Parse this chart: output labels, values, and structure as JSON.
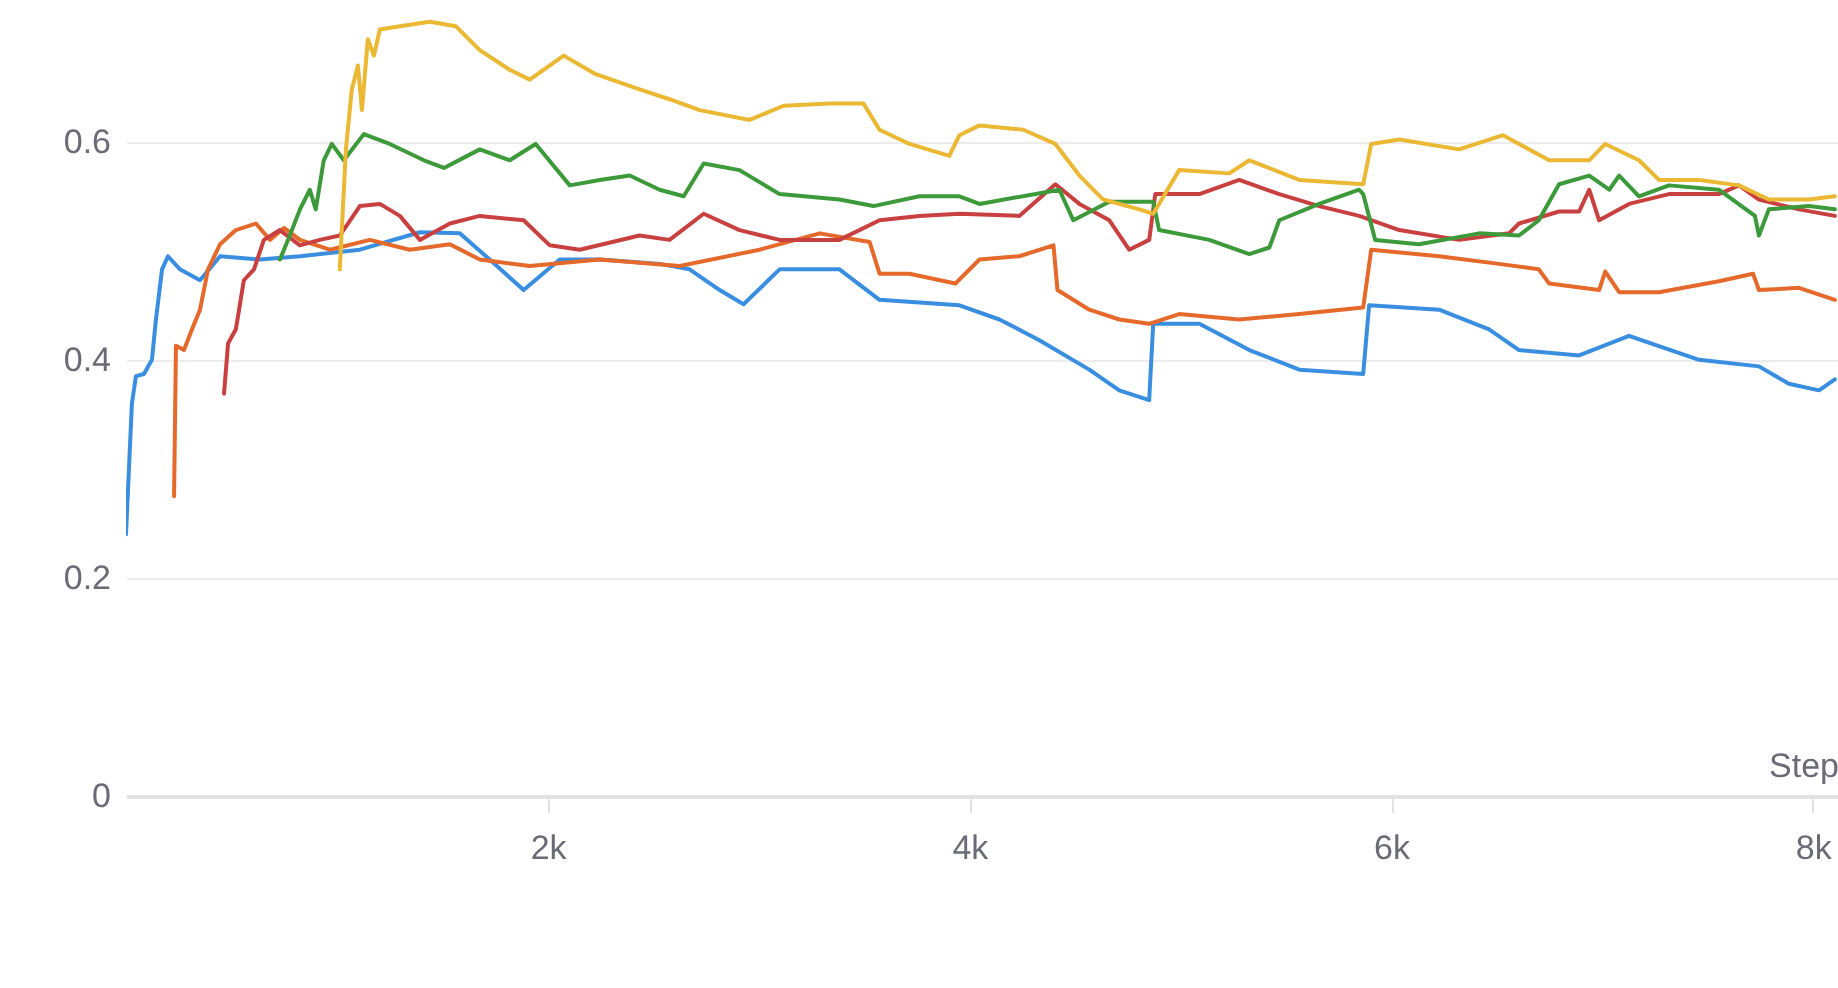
{
  "chart_data": {
    "type": "line",
    "xlabel": "Step",
    "xlim": [
      0,
      8120
    ],
    "ylim": [
      0,
      0.73
    ],
    "xticks": [
      {
        "value": 2000,
        "label": "2k"
      },
      {
        "value": 4000,
        "label": "4k"
      },
      {
        "value": 6000,
        "label": "6k"
      },
      {
        "value": 8000,
        "label": "8k"
      }
    ],
    "yticks": [
      0,
      0.2,
      0.4,
      0.6
    ],
    "grid": "y",
    "series": [
      {
        "color": "#3a8ee0",
        "x": [
          0,
          28,
          47,
          85,
          123,
          142,
          171,
          199,
          256,
          351,
          446,
          635,
          825,
          1109,
          1394,
          1583,
          1725,
          1886,
          2057,
          2247,
          2531,
          2673,
          2816,
          2929,
          3100,
          3384,
          3574,
          3953,
          4143,
          4332,
          4569,
          4711,
          4853,
          4872,
          5091,
          5328,
          5565,
          5868,
          5896,
          6228,
          6465,
          6607,
          6892,
          7129,
          7461,
          7745,
          7887,
          8030,
          8105
        ],
        "values": [
          0.24,
          0.36,
          0.385,
          0.387,
          0.4,
          0.437,
          0.483,
          0.495,
          0.483,
          0.473,
          0.495,
          0.492,
          0.495,
          0.501,
          0.517,
          0.516,
          0.492,
          0.464,
          0.492,
          0.492,
          0.488,
          0.483,
          0.464,
          0.451,
          0.483,
          0.483,
          0.455,
          0.45,
          0.437,
          0.418,
          0.391,
          0.372,
          0.363,
          0.433,
          0.433,
          0.409,
          0.391,
          0.387,
          0.45,
          0.446,
          0.428,
          0.409,
          0.404,
          0.422,
          0.4,
          0.394,
          0.378,
          0.372,
          0.382
        ]
      },
      {
        "color": "#e4692b",
        "x": [
          228,
          237,
          275,
          313,
          351,
          389,
          446,
          521,
          616,
          683,
          749,
          825,
          967,
          1157,
          1346,
          1536,
          1678,
          1915,
          2247,
          2626,
          3005,
          3290,
          3527,
          3574,
          3716,
          3934,
          4048,
          4237,
          4399,
          4418,
          4569,
          4711,
          4853,
          4995,
          5280,
          5565,
          5868,
          5906,
          6228,
          6512,
          6701,
          6750,
          6987,
          7016,
          7082,
          7271,
          7555,
          7717,
          7745,
          7935,
          8105
        ],
        "values": [
          0.275,
          0.413,
          0.409,
          0.428,
          0.446,
          0.483,
          0.506,
          0.519,
          0.525,
          0.51,
          0.521,
          0.51,
          0.501,
          0.51,
          0.501,
          0.506,
          0.492,
          0.486,
          0.492,
          0.486,
          0.501,
          0.516,
          0.508,
          0.479,
          0.479,
          0.47,
          0.492,
          0.495,
          0.505,
          0.464,
          0.446,
          0.437,
          0.433,
          0.442,
          0.437,
          0.442,
          0.448,
          0.501,
          0.495,
          0.488,
          0.483,
          0.47,
          0.464,
          0.481,
          0.462,
          0.462,
          0.472,
          0.479,
          0.464,
          0.466,
          0.455
        ]
      },
      {
        "color": "#c8403f",
        "x": [
          465,
          484,
          521,
          559,
          607,
          654,
          730,
          825,
          919,
          1014,
          1109,
          1204,
          1299,
          1394,
          1536,
          1678,
          1886,
          2010,
          2152,
          2436,
          2578,
          2740,
          2910,
          3100,
          3384,
          3574,
          3763,
          3953,
          4237,
          4408,
          4522,
          4664,
          4758,
          4853,
          4882,
          5091,
          5280,
          5470,
          5659,
          5849,
          6039,
          6323,
          6560,
          6607,
          6797,
          6892,
          6940,
          6987,
          7129,
          7318,
          7555,
          7650,
          7745,
          7935,
          8105
        ],
        "values": [
          0.369,
          0.415,
          0.428,
          0.473,
          0.483,
          0.51,
          0.519,
          0.505,
          0.51,
          0.514,
          0.541,
          0.543,
          0.532,
          0.51,
          0.525,
          0.532,
          0.528,
          0.505,
          0.501,
          0.514,
          0.51,
          0.534,
          0.519,
          0.51,
          0.51,
          0.528,
          0.532,
          0.534,
          0.532,
          0.561,
          0.543,
          0.528,
          0.501,
          0.51,
          0.552,
          0.552,
          0.565,
          0.552,
          0.541,
          0.532,
          0.519,
          0.51,
          0.516,
          0.525,
          0.536,
          0.536,
          0.556,
          0.528,
          0.543,
          0.552,
          0.552,
          0.56,
          0.547,
          0.538,
          0.532
        ]
      },
      {
        "color": "#3c9a3a",
        "x": [
          730,
          777,
          825,
          872,
          900,
          938,
          976,
          1033,
          1128,
          1251,
          1413,
          1508,
          1678,
          1820,
          1943,
          2105,
          2247,
          2389,
          2531,
          2645,
          2740,
          2910,
          3100,
          3384,
          3545,
          3763,
          3953,
          4048,
          4427,
          4493,
          4664,
          4872,
          4900,
          5138,
          5328,
          5423,
          5470,
          5659,
          5849,
          5868,
          5925,
          6133,
          6418,
          6607,
          6701,
          6797,
          6940,
          7035,
          7082,
          7176,
          7318,
          7555,
          7726,
          7745,
          7792,
          7982,
          8105
        ],
        "values": [
          0.492,
          0.514,
          0.538,
          0.556,
          0.538,
          0.583,
          0.598,
          0.583,
          0.607,
          0.598,
          0.583,
          0.576,
          0.593,
          0.583,
          0.598,
          0.56,
          0.565,
          0.569,
          0.556,
          0.55,
          0.58,
          0.574,
          0.552,
          0.547,
          0.541,
          0.55,
          0.55,
          0.543,
          0.556,
          0.528,
          0.545,
          0.545,
          0.519,
          0.51,
          0.497,
          0.503,
          0.528,
          0.543,
          0.556,
          0.552,
          0.51,
          0.506,
          0.516,
          0.514,
          0.528,
          0.561,
          0.569,
          0.556,
          0.569,
          0.55,
          0.56,
          0.556,
          0.532,
          0.514,
          0.538,
          0.541,
          0.538
        ]
      },
      {
        "color": "#ebb834",
        "x": [
          1014,
          1043,
          1071,
          1100,
          1119,
          1147,
          1176,
          1204,
          1299,
          1441,
          1564,
          1678,
          1820,
          1915,
          2076,
          2228,
          2436,
          2578,
          2721,
          2958,
          3119,
          3337,
          3498,
          3574,
          3716,
          3905,
          3953,
          4048,
          4256,
          4408,
          4522,
          4635,
          4806,
          4872,
          4995,
          5233,
          5328,
          5565,
          5868,
          5906,
          6039,
          6323,
          6531,
          6750,
          6940,
          7016,
          7176,
          7271,
          7461,
          7650,
          7792,
          7982,
          8105
        ],
        "values": [
          0.483,
          0.593,
          0.648,
          0.67,
          0.629,
          0.694,
          0.679,
          0.703,
          0.706,
          0.71,
          0.706,
          0.684,
          0.666,
          0.657,
          0.679,
          0.662,
          0.648,
          0.639,
          0.629,
          0.62,
          0.633,
          0.635,
          0.635,
          0.611,
          0.598,
          0.587,
          0.606,
          0.615,
          0.611,
          0.598,
          0.569,
          0.547,
          0.538,
          0.534,
          0.574,
          0.571,
          0.583,
          0.565,
          0.561,
          0.598,
          0.602,
          0.593,
          0.606,
          0.583,
          0.583,
          0.598,
          0.583,
          0.565,
          0.565,
          0.56,
          0.547,
          0.547,
          0.55
        ]
      }
    ]
  }
}
